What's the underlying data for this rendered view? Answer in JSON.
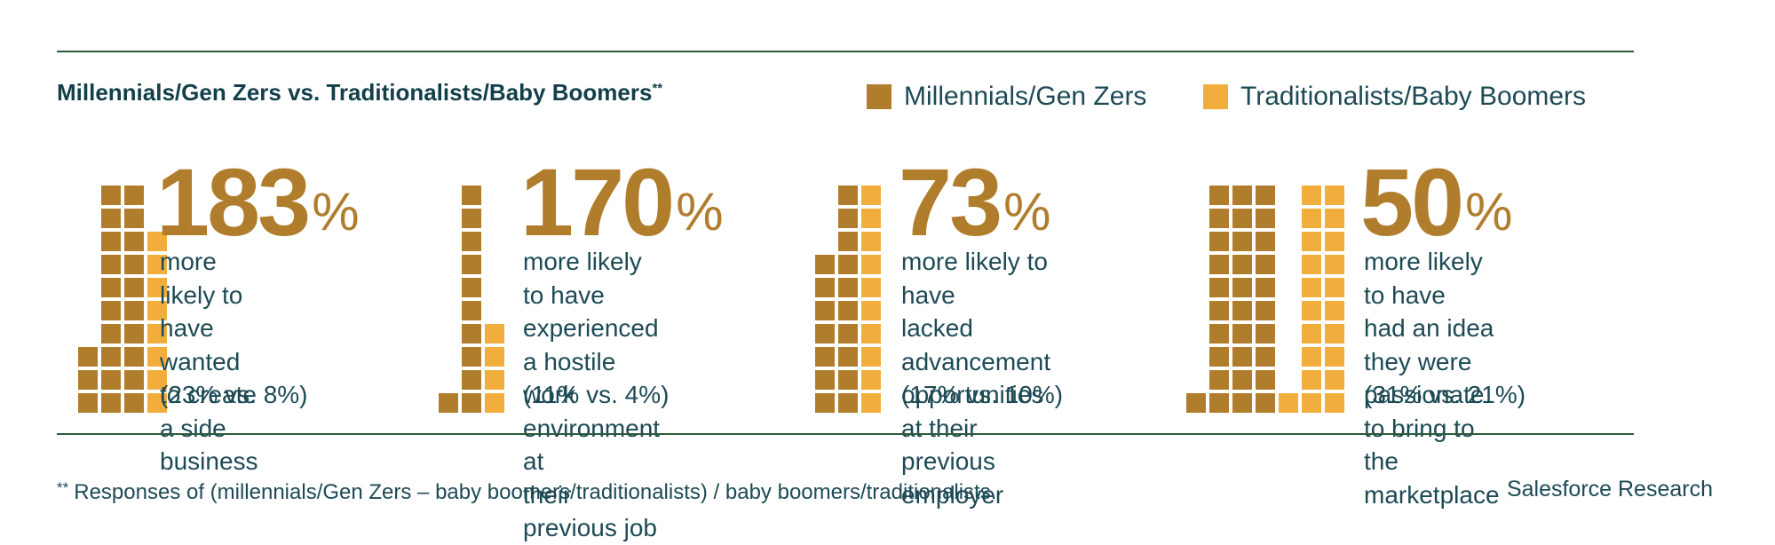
{
  "title": "Millennials/Gen Zers vs. Traditionalists/Baby Boomers",
  "title_mark": "**",
  "colors": {
    "millennials": "#b07d2c",
    "traditionalists": "#f2ae3d",
    "text": "#1d4a55",
    "rule": "#2d5a3a"
  },
  "legend": [
    {
      "label": "Millennials/Gen Zers",
      "color": "#b07d2c"
    },
    {
      "label": "Traditionalists/Baby Boomers",
      "color": "#f2ae3d"
    }
  ],
  "chart_data": {
    "type": "bar",
    "unit_of_squares": "percent of respondents",
    "series": [
      {
        "name": "Millennials/Gen Zers",
        "values": [
          23,
          11,
          17,
          31
        ]
      },
      {
        "name": "Traditionalists/Baby Boomers",
        "values": [
          8,
          4,
          10,
          21
        ]
      }
    ],
    "stats": [
      {
        "value": "183",
        "unit": "%",
        "description": "more likely to have\nwanted to create\na side business",
        "comparison": "(23% vs. 8%)"
      },
      {
        "value": "170",
        "unit": "%",
        "description": "more likely to have\nexperienced a hostile\nwork environment at\ntheir previous job",
        "comparison": "(11% vs. 4%)"
      },
      {
        "value": "73",
        "unit": "%",
        "description": "more likely to have\nlacked advancement\nopportunities at their\nprevious employer",
        "comparison": "(17% vs. 10%)"
      },
      {
        "value": "50",
        "unit": "%",
        "description": "more likely to have\nhad an idea they were\npassionate to bring to\nthe marketplace",
        "comparison": "(31% vs. 21%)"
      }
    ]
  },
  "footnote": {
    "mark": "**",
    "text": "Responses of (millennials/Gen Zers – baby boomers/traditionalists) / baby boomers/traditionalists."
  },
  "source": "Salesforce Research"
}
